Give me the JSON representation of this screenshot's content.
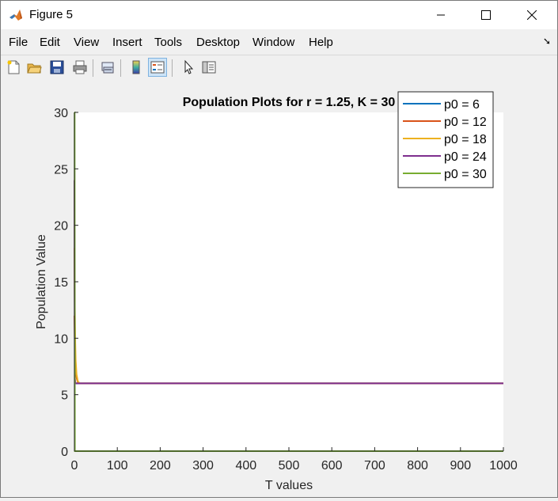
{
  "window": {
    "title": "Figure 5",
    "minimize_icon": "minimize-icon",
    "maximize_icon": "maximize-icon",
    "close_icon": "close-icon"
  },
  "menu": {
    "items": [
      "File",
      "Edit",
      "View",
      "Insert",
      "Tools",
      "Desktop",
      "Window",
      "Help"
    ],
    "overflow_icon": "dock-arrow-icon"
  },
  "toolbar": {
    "buttons": [
      "new-figure-icon",
      "open-file-icon",
      "save-icon",
      "print-icon",
      "link-plot-icon",
      "insert-colorbar-icon",
      "insert-legend-icon",
      "edit-plot-pointer-icon",
      "property-inspector-icon"
    ]
  },
  "colors": {
    "series": [
      "#0072bd",
      "#d95319",
      "#edb120",
      "#7e2f8e",
      "#77ac30"
    ],
    "axes_bg": "#ffffff",
    "figure_bg": "#f0f0f0"
  },
  "chart_data": {
    "type": "line",
    "title": "Population Plots for r = 1.25, K = 30",
    "xlabel": "T values",
    "ylabel": "Population Value",
    "xlim": [
      0,
      1000
    ],
    "ylim": [
      0,
      30
    ],
    "xticks": [
      0,
      100,
      200,
      300,
      400,
      500,
      600,
      700,
      800,
      900,
      1000
    ],
    "yticks": [
      0,
      5,
      10,
      15,
      20,
      25,
      30
    ],
    "grid": false,
    "legend_position": "top-right",
    "series": [
      {
        "name": "p0 = 6",
        "x": [
          0,
          1000
        ],
        "y": [
          6,
          6
        ]
      },
      {
        "name": "p0 = 12",
        "x": [
          0,
          1,
          2,
          3,
          5,
          8,
          12,
          1000
        ],
        "y": [
          12,
          9.6,
          8.2,
          7.3,
          6.5,
          6.1,
          6,
          6
        ]
      },
      {
        "name": "p0 = 18",
        "x": [
          0,
          1,
          2,
          3,
          5,
          8,
          12,
          1000
        ],
        "y": [
          18,
          12.5,
          9.6,
          8,
          6.8,
          6.2,
          6,
          6
        ]
      },
      {
        "name": "p0 = 24",
        "x": [
          0,
          1,
          2,
          3,
          5,
          8,
          12,
          1000
        ],
        "y": [
          24,
          6.5,
          6.1,
          6,
          6,
          6,
          6,
          6
        ]
      },
      {
        "name": "p0 = 30",
        "x": [
          0,
          0.5,
          1,
          1000
        ],
        "y": [
          30,
          30,
          0,
          0
        ]
      }
    ]
  }
}
